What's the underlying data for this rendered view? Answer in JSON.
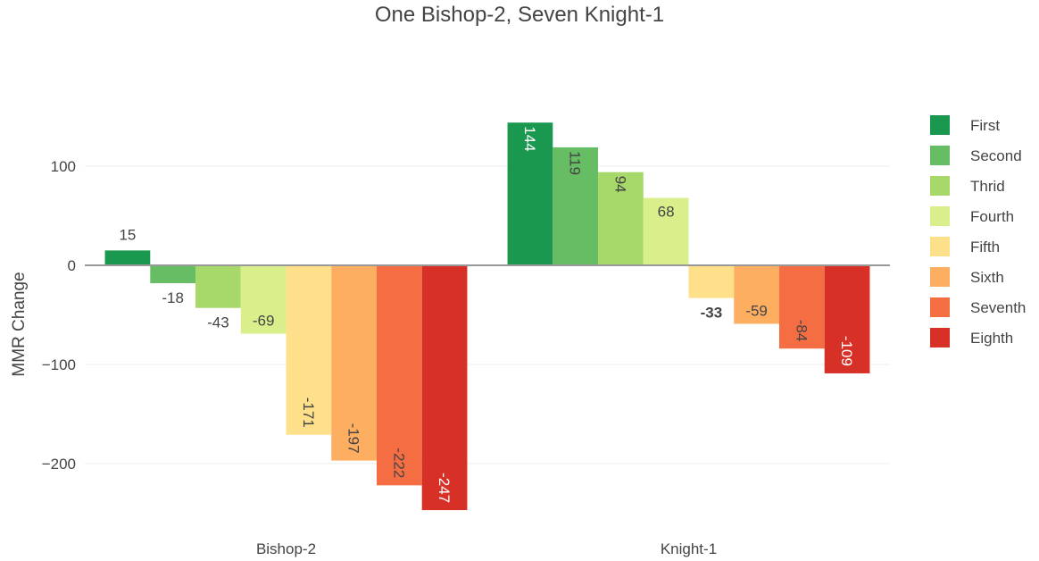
{
  "chart_data": {
    "type": "bar",
    "title": "One Bishop-2, Seven Knight-1",
    "xlabel": "",
    "ylabel": "MMR Change",
    "categories": [
      "Bishop-2",
      "Knight-1"
    ],
    "ylim": [
      -260,
      150
    ],
    "yticks": [
      {
        "value": 100,
        "label": "100"
      },
      {
        "value": 0,
        "label": "0"
      },
      {
        "value": -100,
        "label": "−100"
      },
      {
        "value": -200,
        "label": "−200"
      }
    ],
    "grid": true,
    "legend_position": "right",
    "series": [
      {
        "name": "First",
        "color": "#1a9850",
        "values": [
          15,
          144
        ]
      },
      {
        "name": "Second",
        "color": "#66bd63",
        "values": [
          -18,
          119
        ]
      },
      {
        "name": "Thrid",
        "color": "#a6d96a",
        "values": [
          -43,
          94
        ]
      },
      {
        "name": "Fourth",
        "color": "#d9ef8b",
        "values": [
          -69,
          68
        ]
      },
      {
        "name": "Fifth",
        "color": "#fee08b",
        "values": [
          -171,
          -33
        ]
      },
      {
        "name": "Sixth",
        "color": "#fdae61",
        "values": [
          -197,
          -59
        ]
      },
      {
        "name": "Seventh",
        "color": "#f46d43",
        "values": [
          -222,
          -84
        ]
      },
      {
        "name": "Eighth",
        "color": "#d73027",
        "values": [
          -247,
          -109
        ]
      }
    ],
    "data_labels": [
      [
        "15",
        "144"
      ],
      [
        "-18",
        "119"
      ],
      [
        "-43",
        "94"
      ],
      [
        "-69",
        "68"
      ],
      [
        "-171",
        "-33"
      ],
      [
        "-197",
        "-59"
      ],
      [
        "-222",
        "-84"
      ],
      [
        "-247",
        "-109"
      ]
    ]
  }
}
